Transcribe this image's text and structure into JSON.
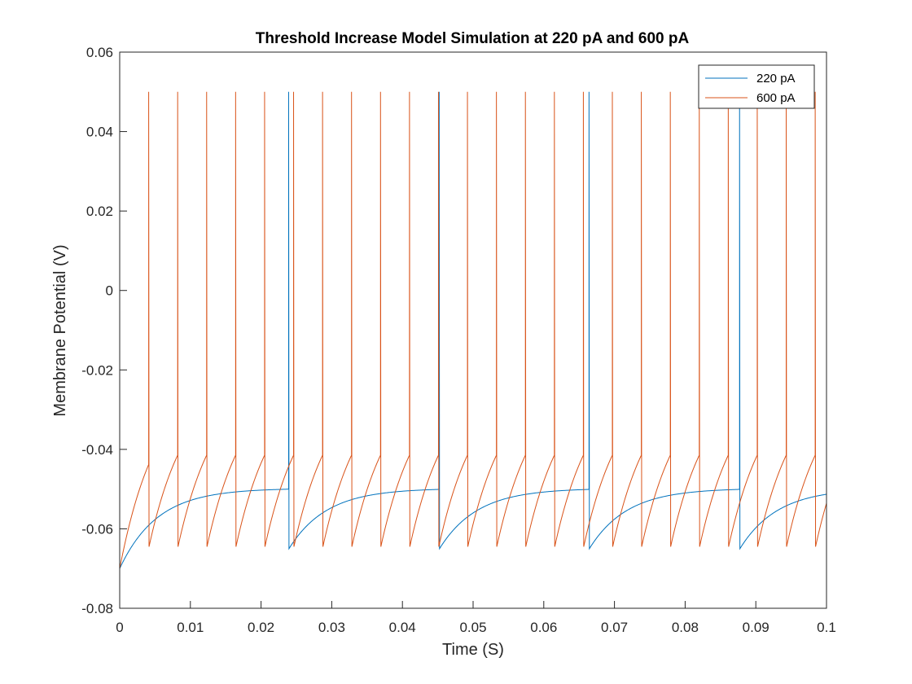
{
  "chart_data": {
    "type": "line",
    "title": "Threshold Increase Model Simulation at 220 pA and 600 pA",
    "xlabel": "Time (S)",
    "ylabel": "Membrane Potential (V)",
    "xlim": [
      0,
      0.1
    ],
    "ylim": [
      -0.08,
      0.06
    ],
    "x_ticks": [
      0,
      0.01,
      0.02,
      0.03,
      0.04,
      0.05,
      0.06,
      0.07,
      0.08,
      0.09,
      0.1
    ],
    "x_tick_labels": [
      "0",
      "0.01",
      "0.02",
      "0.03",
      "0.04",
      "0.05",
      "0.06",
      "0.07",
      "0.08",
      "0.09",
      "0.1"
    ],
    "y_ticks": [
      -0.08,
      -0.06,
      -0.04,
      -0.02,
      0,
      0.02,
      0.04,
      0.06
    ],
    "y_tick_labels": [
      "-0.08",
      "-0.06",
      "-0.04",
      "-0.02",
      "0",
      "0.02",
      "0.04",
      "0.06"
    ],
    "grid": false,
    "legend_position": "top-right",
    "series": [
      {
        "name": "220 pA",
        "color": "#0072BD",
        "model": {
          "v_start": -0.07,
          "v_reset": -0.065,
          "v_threshold": -0.05,
          "v_spike_peak": 0.05,
          "tau": 0.0053,
          "v_asymptote": -0.0498,
          "spike_times": [
            0.0239,
            0.0452,
            0.0664,
            0.0877
          ]
        }
      },
      {
        "name": "600 pA",
        "color": "#D95319",
        "model": {
          "v_start": -0.07,
          "v_reset": -0.0645,
          "v_threshold": -0.05,
          "v_spike_peak": 0.05,
          "tau": 0.0053,
          "v_asymptote": -0.0214,
          "spike_times": [
            0.0041,
            0.0082,
            0.0123,
            0.0164,
            0.0205,
            0.0246,
            0.0287,
            0.0328,
            0.0369,
            0.041,
            0.0451,
            0.0492,
            0.0533,
            0.0574,
            0.0615,
            0.0656,
            0.0697,
            0.0738,
            0.0779,
            0.082,
            0.0861,
            0.0902,
            0.0943,
            0.0984
          ]
        }
      }
    ]
  }
}
